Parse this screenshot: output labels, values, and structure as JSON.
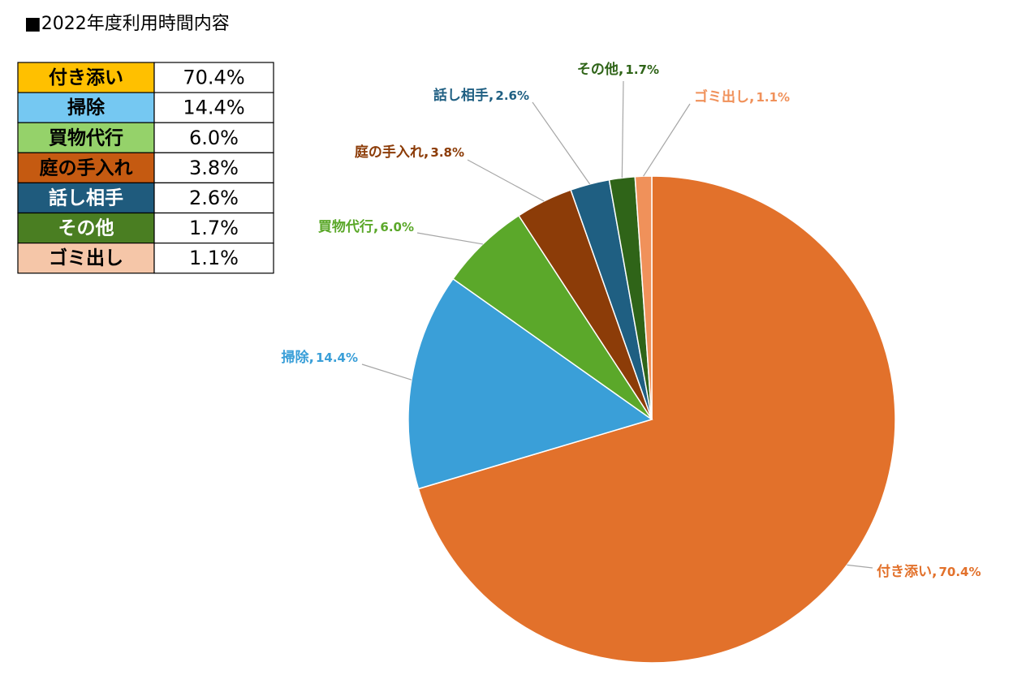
{
  "chart_data": {
    "type": "pie",
    "title": "■2022年度利用時間内容",
    "categories": [
      "付き添い",
      "掃除",
      "買物代行",
      "庭の手入れ",
      "話し相手",
      "その他",
      "ゴミ出し"
    ],
    "values": [
      70.4,
      14.4,
      6.0,
      3.8,
      2.6,
      1.7,
      1.1
    ],
    "value_labels": [
      "70.4%",
      "14.4%",
      "6.0%",
      "3.8%",
      "2.6%",
      "1.7%",
      "1.1%"
    ],
    "label_separator": ",",
    "colors": [
      "#e2712b",
      "#3a9fd8",
      "#5ba82a",
      "#8c3c08",
      "#1f5f82",
      "#2f6418",
      "#f0915a"
    ],
    "table_colors": [
      "#ffc000",
      "#75c8f2",
      "#95d26a",
      "#c55a11",
      "#1f5b7d",
      "#4a7e22",
      "#f5c6a8"
    ]
  }
}
